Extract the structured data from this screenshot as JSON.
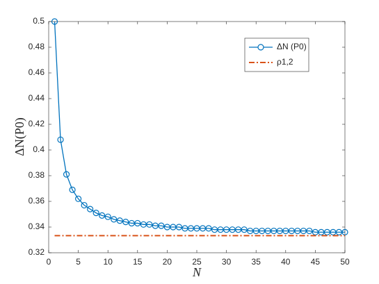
{
  "chart_data": {
    "type": "line",
    "x": [
      1,
      2,
      3,
      4,
      5,
      6,
      7,
      8,
      9,
      10,
      11,
      12,
      13,
      14,
      15,
      16,
      17,
      18,
      19,
      20,
      21,
      22,
      23,
      24,
      25,
      26,
      27,
      28,
      29,
      30,
      31,
      32,
      33,
      34,
      35,
      36,
      37,
      38,
      39,
      40,
      41,
      42,
      43,
      44,
      45,
      46,
      47,
      48,
      49,
      50
    ],
    "xlabel": "N",
    "ylabel": "ΔN(P0)",
    "series": [
      {
        "name": "ΔN (P0)",
        "color": "#0072bd",
        "marker": "circle",
        "values": [
          0.5,
          0.408,
          0.381,
          0.369,
          0.362,
          0.357,
          0.354,
          0.351,
          0.349,
          0.348,
          0.346,
          0.345,
          0.344,
          0.343,
          0.343,
          0.342,
          0.342,
          0.341,
          0.341,
          0.34,
          0.34,
          0.34,
          0.339,
          0.339,
          0.339,
          0.339,
          0.339,
          0.338,
          0.338,
          0.338,
          0.338,
          0.338,
          0.338,
          0.337,
          0.337,
          0.337,
          0.337,
          0.337,
          0.337,
          0.337,
          0.337,
          0.337,
          0.337,
          0.337,
          0.336,
          0.336,
          0.336,
          0.336,
          0.336,
          0.336
        ]
      },
      {
        "name": "ρ1,2",
        "color": "#d95319",
        "dash": "dashdot",
        "x": [
          1,
          50
        ],
        "values": [
          0.3333,
          0.3333
        ]
      }
    ],
    "xlim": [
      0,
      50
    ],
    "xticks": [
      0,
      5,
      10,
      15,
      20,
      25,
      30,
      35,
      40,
      45,
      50
    ],
    "ylim": [
      0.32,
      0.5
    ],
    "yticks": [
      0.32,
      0.34,
      0.36,
      0.38,
      0.4,
      0.42,
      0.44,
      0.46,
      0.48,
      0.5
    ],
    "legend": "upper-right"
  }
}
